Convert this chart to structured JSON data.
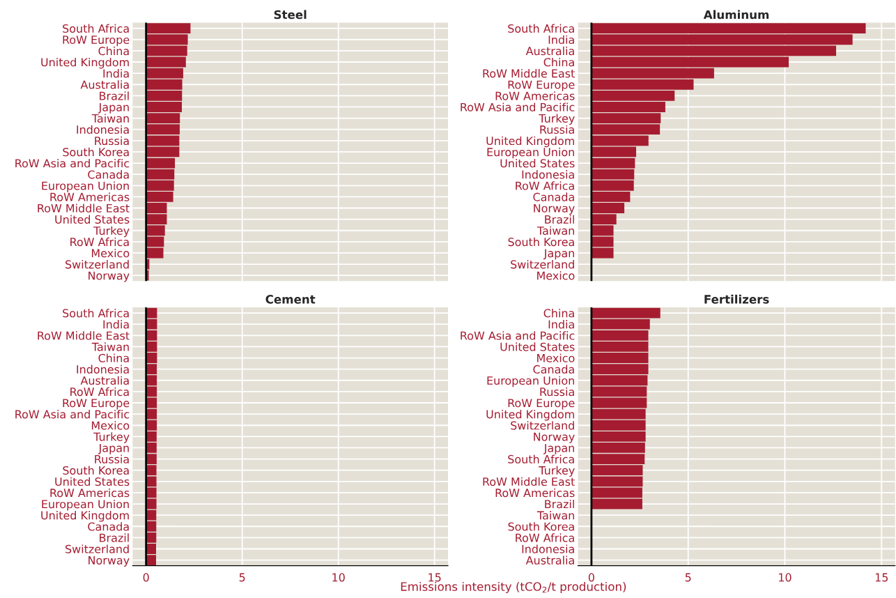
{
  "chart_data": [
    {
      "type": "bar",
      "orientation": "horizontal",
      "title": "Steel",
      "categories": [
        "South Africa",
        "RoW Europe",
        "China",
        "United Kingdom",
        "India",
        "Australia",
        "Brazil",
        "Japan",
        "Taiwan",
        "Indonesia",
        "Russia",
        "South Korea",
        "RoW Asia and Pacific",
        "Canada",
        "European Union",
        "RoW Americas",
        "RoW Middle East",
        "United States",
        "Turkey",
        "RoW Africa",
        "Mexico",
        "Switzerland",
        "Norway"
      ],
      "values": [
        2.31,
        2.17,
        2.14,
        2.07,
        1.93,
        1.88,
        1.87,
        1.86,
        1.76,
        1.75,
        1.73,
        1.73,
        1.5,
        1.47,
        1.45,
        1.41,
        1.08,
        1.08,
        0.98,
        0.93,
        0.9,
        0.17,
        0.14
      ],
      "color": "#a51c30",
      "xlim": [
        -0.7,
        15.7
      ],
      "xticks": [
        0,
        5,
        10,
        15
      ],
      "grid": true,
      "tick_labels": "y",
      "ref_lines": [
        {
          "axis": "x",
          "value": 0,
          "color": "#000000"
        }
      ]
    },
    {
      "type": "bar",
      "orientation": "horizontal",
      "title": "Aluminum",
      "categories": [
        "South Africa",
        "India",
        "Australia",
        "China",
        "RoW Middle East",
        "RoW Europe",
        "RoW Americas",
        "RoW Asia and Pacific",
        "Turkey",
        "Russia",
        "United Kingdom",
        "European Union",
        "United States",
        "Indonesia",
        "RoW Africa",
        "Canada",
        "Norway",
        "Brazil",
        "Taiwan",
        "South Korea",
        "Japan",
        "Switzerland",
        "Mexico"
      ],
      "values": [
        14.18,
        13.5,
        12.65,
        10.2,
        6.34,
        5.28,
        4.3,
        3.82,
        3.58,
        3.54,
        2.95,
        2.31,
        2.25,
        2.21,
        2.19,
        2.0,
        1.7,
        1.29,
        1.14,
        1.14,
        1.14,
        0,
        0
      ],
      "color": "#a51c30",
      "xlim": [
        -0.7,
        15.7
      ],
      "xticks": [
        0,
        5,
        10,
        15
      ],
      "grid": true,
      "tick_labels": "y",
      "ref_lines": [
        {
          "axis": "x",
          "value": 0,
          "color": "#000000"
        }
      ]
    },
    {
      "type": "bar",
      "orientation": "horizontal",
      "title": "Cement",
      "xlabel": "Emissions intensity (tCO$_{2}$/t production)",
      "categories": [
        "South Africa",
        "India",
        "RoW Middle East",
        "Taiwan",
        "China",
        "Indonesia",
        "Australia",
        "RoW Africa",
        "RoW Europe",
        "RoW Asia and Pacific",
        "Mexico",
        "Turkey",
        "Japan",
        "Russia",
        "South Korea",
        "United States",
        "RoW Americas",
        "European Union",
        "United Kingdom",
        "Canada",
        "Brazil",
        "Switzerland",
        "Norway"
      ],
      "values": [
        0.57,
        0.57,
        0.57,
        0.57,
        0.57,
        0.56,
        0.56,
        0.56,
        0.56,
        0.56,
        0.56,
        0.55,
        0.55,
        0.55,
        0.54,
        0.54,
        0.54,
        0.54,
        0.53,
        0.53,
        0.53,
        0.52,
        0.52
      ],
      "color": "#a51c30",
      "xlim": [
        -0.7,
        15.7
      ],
      "xticks": [
        0,
        5,
        10,
        15
      ],
      "grid": true,
      "ref_lines": [
        {
          "axis": "x",
          "value": 0,
          "color": "#000000"
        }
      ]
    },
    {
      "type": "bar",
      "orientation": "horizontal",
      "title": "Fertilizers",
      "categories": [
        "China",
        "India",
        "RoW Asia and Pacific",
        "United States",
        "Mexico",
        "Canada",
        "European Union",
        "Russia",
        "RoW Europe",
        "United Kingdom",
        "Switzerland",
        "Norway",
        "Japan",
        "South Africa",
        "Turkey",
        "RoW Middle East",
        "RoW Americas",
        "Brazil",
        "Taiwan",
        "South Korea",
        "RoW Africa",
        "Indonesia",
        "Australia"
      ],
      "values": [
        3.56,
        3.02,
        2.94,
        2.94,
        2.94,
        2.94,
        2.9,
        2.86,
        2.86,
        2.8,
        2.8,
        2.8,
        2.77,
        2.75,
        2.65,
        2.65,
        2.63,
        2.63,
        0,
        0,
        0,
        0,
        0
      ],
      "color": "#a51c30",
      "xlim": [
        -0.7,
        15.7
      ],
      "xticks": [
        0,
        5,
        10,
        15
      ],
      "grid": true,
      "ref_lines": [
        {
          "axis": "x",
          "value": 0,
          "color": "#000000"
        }
      ]
    }
  ]
}
